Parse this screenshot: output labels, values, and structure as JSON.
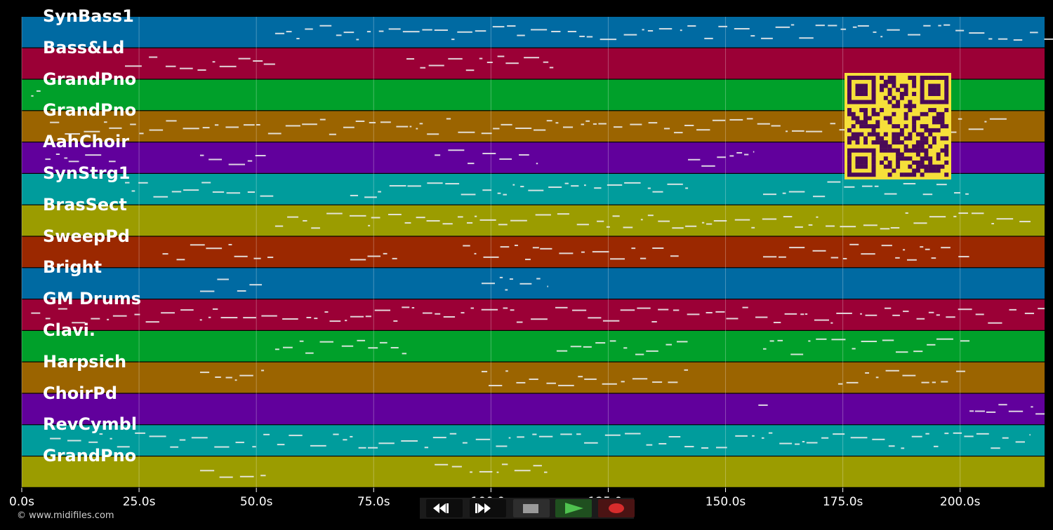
{
  "tracks": [
    {
      "label": "SynBass1",
      "color": "#006aa2"
    },
    {
      "label": "Bass&Ld",
      "color": "#9b0036"
    },
    {
      "label": "GrandPno",
      "color": "#00a02a"
    },
    {
      "label": "GrandPno",
      "color": "#9b6400"
    },
    {
      "label": "AahChoir",
      "color": "#61009c"
    },
    {
      "label": "SynStrg1",
      "color": "#009c9c"
    },
    {
      "label": "BrasSect",
      "color": "#9b9c00"
    },
    {
      "label": "SweepPd",
      "color": "#9b2800"
    },
    {
      "label": "Bright",
      "color": "#006aa2"
    },
    {
      "label": "GM Drums",
      "color": "#9b0036"
    },
    {
      "label": "Clavi.",
      "color": "#00a02a"
    },
    {
      "label": "Harpsich",
      "color": "#9b6400"
    },
    {
      "label": "ChoirPd",
      "color": "#61009c"
    },
    {
      "label": "RevCymbl",
      "color": "#009c9c"
    },
    {
      "label": "GrandPno",
      "color": "#9b9c00"
    }
  ],
  "time_axis": {
    "unit": "s",
    "range": [
      0,
      218
    ],
    "ticks": [
      "0.0s",
      "25.0s",
      "50.0s",
      "75.0s",
      "100.0s",
      "125.0s",
      "150.0s",
      "175.0s",
      "200.0s"
    ]
  },
  "transport": {
    "rewind_icon": "rewind-icon",
    "ffwd_icon": "fast-forward-icon",
    "stop_icon": "stop-icon",
    "play_icon": "play-icon",
    "record_icon": "record-icon"
  },
  "copyright": "© www.midifiles.com",
  "qr_code": {
    "color_bg": "#f6e03a",
    "color_fg": "#4a0a57"
  }
}
